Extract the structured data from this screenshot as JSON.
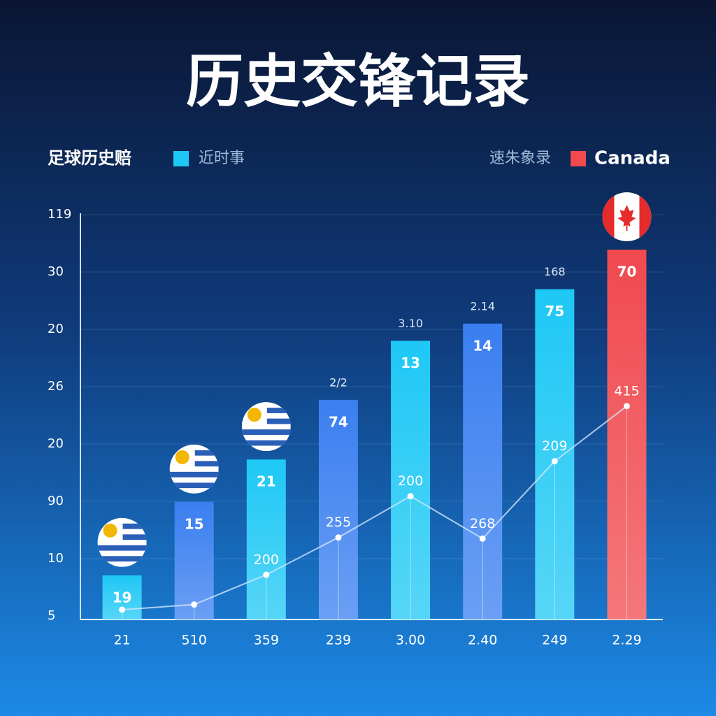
{
  "chart_data": {
    "type": "bar",
    "title": "历史交锋记录",
    "legend_left_title": "足球历史赔",
    "legend_left_item": "近时事",
    "legend_right_title": "速朱象录",
    "legend_right_item": "Canada",
    "legend_left_color": "#1ec8f5",
    "legend_right_color": "#f04a4f",
    "categories": [
      "21",
      "510",
      "359",
      "239",
      "3.00",
      "2.40",
      "249",
      "2.29"
    ],
    "values": [
      0.71,
      1.99,
      2.73,
      3.77,
      4.8,
      5.1,
      5.7,
      6.39
    ],
    "colors": [
      "#1ec8f5",
      "#3a7ff0",
      "#1ec8f5",
      "#3a7ff0",
      "#1ec8f5",
      "#3a7ff0",
      "#1ec8f5",
      "#f04a4f"
    ],
    "bar_texts": [
      "19",
      "15",
      "21",
      "74",
      "13",
      "14",
      "75",
      "70"
    ],
    "top_texts": [
      null,
      null,
      null,
      "2/2",
      "3.10",
      "2.14",
      "168",
      null
    ],
    "line_values": [
      0.11,
      0.2,
      0.72,
      1.37,
      2.09,
      1.35,
      2.7,
      3.66
    ],
    "line_texts": [
      null,
      null,
      "200",
      "255",
      "200",
      "268",
      "209",
      "415"
    ],
    "line_color": "#cfe6ff",
    "ylim": [
      0,
      7
    ],
    "yticks": [
      {
        "value": 0,
        "label": "5"
      },
      {
        "value": 1,
        "label": "10"
      },
      {
        "value": 2,
        "label": "90"
      },
      {
        "value": 3,
        "label": "20"
      },
      {
        "value": 4,
        "label": "26"
      },
      {
        "value": 5,
        "label": "20"
      },
      {
        "value": 6,
        "label": "30"
      },
      {
        "value": 7,
        "label": "119"
      }
    ],
    "grid": true
  }
}
